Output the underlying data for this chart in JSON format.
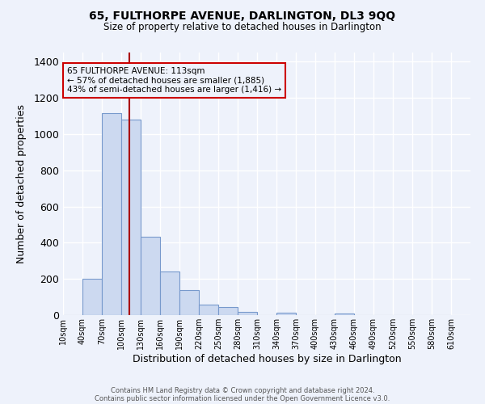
{
  "title": "65, FULTHORPE AVENUE, DARLINGTON, DL3 9QQ",
  "subtitle": "Size of property relative to detached houses in Darlington",
  "xlabel": "Distribution of detached houses by size in Darlington",
  "ylabel": "Number of detached properties",
  "bar_color": "#ccd9f0",
  "bar_edge_color": "#7799cc",
  "background_color": "#eef2fb",
  "grid_color": "#ffffff",
  "annotation_box_edge": "#cc0000",
  "annotation_line_color": "#aa0000",
  "annotation_text": "65 FULTHORPE AVENUE: 113sqm\n← 57% of detached houses are smaller (1,885)\n43% of semi-detached houses are larger (1,416) →",
  "property_value": 113,
  "tick_labels": [
    "10sqm",
    "40sqm",
    "70sqm",
    "100sqm",
    "130sqm",
    "160sqm",
    "190sqm",
    "220sqm",
    "250sqm",
    "280sqm",
    "310sqm",
    "340sqm",
    "370sqm",
    "400sqm",
    "430sqm",
    "460sqm",
    "490sqm",
    "520sqm",
    "550sqm",
    "580sqm",
    "610sqm"
  ],
  "bin_edges": [
    10,
    40,
    70,
    100,
    130,
    160,
    190,
    220,
    250,
    280,
    310,
    340,
    370,
    400,
    430,
    460,
    490,
    520,
    550,
    580,
    610
  ],
  "bar_heights": [
    0,
    200,
    1115,
    1080,
    435,
    240,
    140,
    60,
    45,
    20,
    0,
    15,
    0,
    0,
    10,
    0,
    0,
    0,
    0,
    0
  ],
  "ylim": [
    0,
    1450
  ],
  "yticks": [
    0,
    200,
    400,
    600,
    800,
    1000,
    1200,
    1400
  ],
  "footer1": "Contains HM Land Registry data © Crown copyright and database right 2024.",
  "footer2": "Contains public sector information licensed under the Open Government Licence v3.0."
}
